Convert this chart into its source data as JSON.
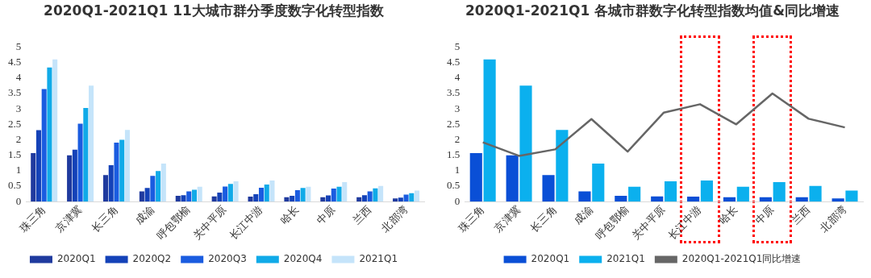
{
  "chart_data": [
    {
      "type": "bar",
      "title": "2020Q1-2021Q1 11大城市群分季度数字化转型指数",
      "categories": [
        "珠三角",
        "京津冀",
        "长三角",
        "成渝",
        "呼包鄂榆",
        "关中平原",
        "长江中游",
        "哈长",
        "中原",
        "兰西",
        "北部湾"
      ],
      "series": [
        {
          "name": "2020Q1",
          "color": "#1f3a9e",
          "values": [
            1.57,
            1.5,
            0.86,
            0.33,
            0.19,
            0.17,
            0.16,
            0.14,
            0.14,
            0.14,
            0.1
          ]
        },
        {
          "name": "2020Q2",
          "color": "#1442b8",
          "values": [
            2.31,
            1.68,
            1.18,
            0.44,
            0.21,
            0.29,
            0.24,
            0.19,
            0.2,
            0.21,
            0.13
          ]
        },
        {
          "name": "2020Q3",
          "color": "#1a5ce0",
          "values": [
            3.64,
            2.52,
            1.91,
            0.83,
            0.33,
            0.49,
            0.45,
            0.37,
            0.42,
            0.33,
            0.23
          ]
        },
        {
          "name": "2020Q4",
          "color": "#10aae8",
          "values": [
            4.34,
            3.03,
            2.0,
            0.99,
            0.38,
            0.57,
            0.55,
            0.44,
            0.48,
            0.43,
            0.27
          ]
        },
        {
          "name": "2021Q1",
          "color": "#c5e4fa",
          "values": [
            4.6,
            3.75,
            2.32,
            1.23,
            0.48,
            0.66,
            0.68,
            0.48,
            0.63,
            0.51,
            0.36
          ]
        }
      ],
      "ylim": [
        0,
        5
      ],
      "yticks": [
        0,
        0.5,
        1,
        1.5,
        2,
        2.5,
        3,
        3.5,
        4,
        4.5,
        5
      ],
      "grid": false,
      "legend": "bottom"
    },
    {
      "type": "bar",
      "title": "2020Q1-2021Q1 各城市群数字化转型指数均值&同比增速",
      "categories": [
        "珠三角",
        "京津冀",
        "长三角",
        "成渝",
        "呼包鄂榆",
        "关中平原",
        "长江中游",
        "哈长",
        "中原",
        "兰西",
        "北部湾"
      ],
      "series": [
        {
          "name": "2020Q1",
          "color": "#0a4fd6",
          "values": [
            1.57,
            1.5,
            0.86,
            0.33,
            0.19,
            0.17,
            0.16,
            0.14,
            0.14,
            0.14,
            0.1
          ]
        },
        {
          "name": "2021Q1",
          "color": "#0bb0ee",
          "values": [
            4.6,
            3.75,
            2.32,
            1.23,
            0.48,
            0.66,
            0.68,
            0.48,
            0.63,
            0.51,
            0.36
          ]
        },
        {
          "name": "2020Q1-2021Q1同比增速",
          "type": "line",
          "color": "#666666",
          "values": [
            1.92,
            1.48,
            1.69,
            2.67,
            1.62,
            2.88,
            3.15,
            2.5,
            3.5,
            2.68,
            2.4
          ]
        }
      ],
      "ylim": [
        0,
        5
      ],
      "yticks": [
        0,
        0.5,
        1,
        1.5,
        2,
        2.5,
        3,
        3.5,
        4,
        4.5,
        5
      ],
      "grid": false,
      "legend": "bottom",
      "marker": "none"
    }
  ]
}
